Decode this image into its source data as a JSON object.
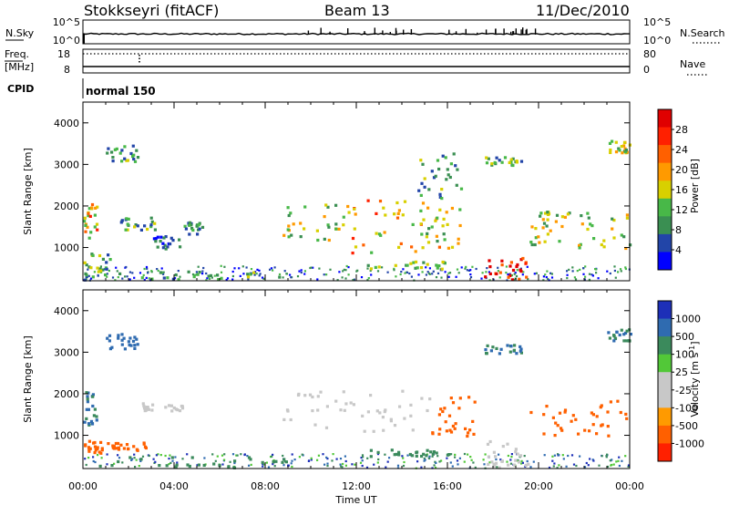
{
  "header": {
    "station": "Stokkseyri (fitACF)",
    "beam": "Beam 13",
    "date": "11/Dec/2010"
  },
  "status_panels": {
    "nsky": {
      "left_label": "N.Sky",
      "left_ticks": [
        "10^5",
        "10^0"
      ],
      "right_label": "N.Search",
      "right_ticks": [
        "10^5",
        "10^0"
      ]
    },
    "freq": {
      "left_label_1": "Freq.",
      "left_label_2": "[MHz]",
      "left_ticks": [
        "18",
        "8"
      ],
      "right_label": "Nave",
      "right_ticks": [
        "80",
        "0"
      ]
    },
    "cpid": {
      "label": "CPID",
      "mode": "normal 150"
    }
  },
  "x_axis": {
    "label": "Time UT",
    "tick_labels": [
      "00:00",
      "04:00",
      "08:00",
      "12:00",
      "16:00",
      "20:00",
      "00:00"
    ]
  },
  "colors": {
    "power": [
      "#0000ff",
      "#2245a8",
      "#3a8f52",
      "#48b848",
      "#d8d000",
      "#ff9a00",
      "#ff6000",
      "#ff2000",
      "#e00000"
    ],
    "velocity": [
      "#1d2fb8",
      "#2f6bb0",
      "#3b8a5c",
      "#52c838",
      "#c8c8c8",
      "#c8c8c8",
      "#ff9a00",
      "#ff6000",
      "#ff2000"
    ]
  },
  "chart_data": [
    {
      "type": "heatmap",
      "name": "power",
      "ylabel": "Slant Range [km]",
      "xlabel": "",
      "x_unit_range": [
        0,
        24
      ],
      "ylim": [
        200,
        4500
      ],
      "y_ticks": [
        1000,
        2000,
        3000,
        4000
      ],
      "colorbar": {
        "title": "Power [dB]",
        "range": [
          0,
          32
        ],
        "tick_labels": [
          "4",
          "8",
          "12",
          "16",
          "20",
          "24",
          "28"
        ]
      },
      "regions": [
        {
          "t": [
            0.0,
            0.6
          ],
          "r": [
            1200,
            2100
          ],
          "value": 18
        },
        {
          "t": [
            0.0,
            1.2
          ],
          "r": [
            300,
            900
          ],
          "value": 12
        },
        {
          "t": [
            1.0,
            2.4
          ],
          "r": [
            3100,
            3500
          ],
          "value": 10
        },
        {
          "t": [
            1.6,
            3.2
          ],
          "r": [
            1450,
            1750
          ],
          "value": 10
        },
        {
          "t": [
            3.0,
            4.2
          ],
          "r": [
            1000,
            1300
          ],
          "value": 6
        },
        {
          "t": [
            4.4,
            5.2
          ],
          "r": [
            1350,
            1650
          ],
          "value": 8
        },
        {
          "t": [
            0.0,
            9.0
          ],
          "r": [
            250,
            450
          ],
          "value": 10
        },
        {
          "t": [
            8.6,
            11.4
          ],
          "r": [
            1200,
            2100
          ],
          "value": 14
        },
        {
          "t": [
            11.4,
            15.0
          ],
          "r": [
            900,
            2200
          ],
          "value": 20
        },
        {
          "t": [
            15.0,
            16.6
          ],
          "r": [
            1000,
            2000
          ],
          "value": 16
        },
        {
          "t": [
            12.4,
            16.2
          ],
          "r": [
            500,
            700
          ],
          "value": 12
        },
        {
          "t": [
            14.6,
            16.6
          ],
          "r": [
            2200,
            3300
          ],
          "value": 10
        },
        {
          "t": [
            17.6,
            19.6
          ],
          "r": [
            250,
            850
          ],
          "value": 30
        },
        {
          "t": [
            17.6,
            19.2
          ],
          "r": [
            3000,
            3200
          ],
          "value": 12
        },
        {
          "t": [
            19.6,
            20.6
          ],
          "r": [
            1100,
            1900
          ],
          "value": 14
        },
        {
          "t": [
            20.6,
            24.0
          ],
          "r": [
            1000,
            1900
          ],
          "value": 14
        },
        {
          "t": [
            23.0,
            24.0
          ],
          "r": [
            3300,
            3600
          ],
          "value": 14
        }
      ]
    },
    {
      "type": "heatmap",
      "name": "velocity",
      "ylabel": "Slant Range [km]",
      "xlabel": "Time UT",
      "x_unit_range": [
        0,
        24
      ],
      "ylim": [
        200,
        4500
      ],
      "y_ticks": [
        1000,
        2000,
        3000,
        4000
      ],
      "colorbar": {
        "title": "Velocity [m s^-1]",
        "tick_labels": [
          "1000",
          "500",
          "100",
          "25",
          "-25",
          "-100",
          "-500",
          "-1000"
        ]
      },
      "regions": [
        {
          "t": [
            0.0,
            0.6
          ],
          "r": [
            1200,
            2100
          ],
          "value": 100
        },
        {
          "t": [
            0.0,
            1.2
          ],
          "r": [
            600,
            900
          ],
          "value": -200
        },
        {
          "t": [
            1.2,
            2.8
          ],
          "r": [
            650,
            850
          ],
          "value": -300
        },
        {
          "t": [
            1.0,
            2.4
          ],
          "r": [
            3100,
            3500
          ],
          "value": 200
        },
        {
          "t": [
            2.4,
            4.4
          ],
          "r": [
            1600,
            1800
          ],
          "value": 0
        },
        {
          "t": [
            0.0,
            9.0
          ],
          "r": [
            250,
            500
          ],
          "value": 50
        },
        {
          "t": [
            8.6,
            15.2
          ],
          "r": [
            1100,
            2100
          ],
          "value": 0
        },
        {
          "t": [
            15.2,
            17.2
          ],
          "r": [
            1000,
            2000
          ],
          "value": -300
        },
        {
          "t": [
            12.4,
            16.2
          ],
          "r": [
            500,
            700
          ],
          "value": 60
        },
        {
          "t": [
            17.6,
            19.6
          ],
          "r": [
            250,
            900
          ],
          "value": 0
        },
        {
          "t": [
            17.6,
            19.2
          ],
          "r": [
            3000,
            3200
          ],
          "value": 100
        },
        {
          "t": [
            19.6,
            24.0
          ],
          "r": [
            1000,
            1900
          ],
          "value": -300
        },
        {
          "t": [
            23.0,
            24.0
          ],
          "r": [
            3300,
            3600
          ],
          "value": 100
        }
      ]
    }
  ]
}
